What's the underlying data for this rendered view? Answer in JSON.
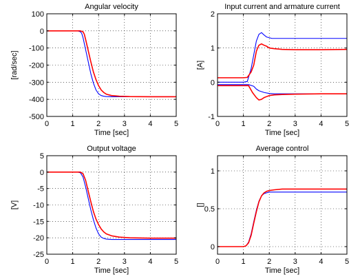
{
  "colors": {
    "background": "#ffffff",
    "axes": "#000000",
    "grid": "#000000",
    "simulation": "#0000ff",
    "experiment": "#ff0000"
  },
  "chart_data": [
    {
      "type": "line",
      "title": "Angular velocity",
      "xlabel": "Time [sec]",
      "ylabel": "[rad/sec]",
      "xlim": [
        0,
        5
      ],
      "ylim": [
        -500,
        100
      ],
      "xticks": [
        0,
        1,
        2,
        3,
        4,
        5
      ],
      "yticks": [
        100,
        0,
        -100,
        -200,
        -300,
        -400,
        -500
      ],
      "grid": true,
      "series": [
        {
          "color": "#0000ff",
          "x": [
            0,
            1.2,
            1.3,
            1.35,
            1.4,
            1.5,
            1.6,
            1.7,
            1.8,
            1.9,
            2.0,
            2.1,
            2.2,
            2.3,
            2.5,
            3.0,
            4.0,
            5.0
          ],
          "y": [
            0,
            0,
            -5,
            -15,
            -40,
            -110,
            -180,
            -250,
            -305,
            -345,
            -368,
            -378,
            -382,
            -384,
            -385,
            -385,
            -385,
            -385
          ]
        },
        {
          "color": "#ff0000",
          "x": [
            0,
            1.3,
            1.4,
            1.45,
            1.5,
            1.6,
            1.7,
            1.8,
            1.9,
            2.0,
            2.1,
            2.2,
            2.3,
            2.5,
            2.8,
            3.2,
            4.0,
            5.0
          ],
          "y": [
            0,
            0,
            -5,
            -20,
            -50,
            -115,
            -180,
            -240,
            -285,
            -320,
            -345,
            -360,
            -370,
            -378,
            -382,
            -384,
            -385,
            -385
          ]
        }
      ]
    },
    {
      "type": "line",
      "title": "Input current and armature current",
      "xlabel": "Time [sec]",
      "ylabel": "[A]",
      "xlim": [
        0,
        5
      ],
      "ylim": [
        -1,
        2
      ],
      "xticks": [
        0,
        1,
        2,
        3,
        4,
        5
      ],
      "yticks": [
        2,
        1,
        0,
        -1
      ],
      "grid": true,
      "series": [
        {
          "color": "#0000ff",
          "x": [
            0,
            1.0,
            1.15,
            1.3,
            1.5,
            1.6,
            1.7,
            1.8,
            1.9,
            2.0,
            2.1,
            2.3,
            3.0,
            5.0
          ],
          "y": [
            0,
            0,
            0.02,
            0.4,
            1.2,
            1.4,
            1.45,
            1.38,
            1.32,
            1.3,
            1.28,
            1.28,
            1.28,
            1.28
          ]
        },
        {
          "color": "#0000ff",
          "x": [
            0,
            1.0,
            1.2,
            1.4,
            1.5,
            1.6,
            1.8,
            2.0,
            2.2,
            3.0,
            5.0
          ],
          "y": [
            -0.07,
            -0.07,
            -0.07,
            -0.12,
            -0.2,
            -0.25,
            -0.3,
            -0.33,
            -0.34,
            -0.34,
            -0.34
          ]
        },
        {
          "color": "#ff0000",
          "x": [
            0,
            1.0,
            1.15,
            1.3,
            1.4,
            1.5,
            1.55,
            1.6,
            1.7,
            1.8,
            1.9,
            2.0,
            2.2,
            2.5,
            3.0,
            4.0,
            5.0
          ],
          "y": [
            0.13,
            0.13,
            0.14,
            0.3,
            0.5,
            0.9,
            1.0,
            1.08,
            1.12,
            1.08,
            1.05,
            1.0,
            0.98,
            0.96,
            0.95,
            0.95,
            0.96
          ]
        },
        {
          "color": "#ff0000",
          "x": [
            0,
            1.1,
            1.2,
            1.35,
            1.5,
            1.6,
            1.7,
            1.8,
            1.9,
            2.0,
            2.2,
            2.5,
            3.0,
            4.0,
            5.0
          ],
          "y": [
            -0.1,
            -0.1,
            -0.1,
            -0.3,
            -0.45,
            -0.52,
            -0.5,
            -0.45,
            -0.42,
            -0.39,
            -0.37,
            -0.36,
            -0.35,
            -0.34,
            -0.34
          ]
        }
      ]
    },
    {
      "type": "line",
      "title": "Output voltage",
      "xlabel": "Time [sec]",
      "ylabel": "[V]",
      "xlim": [
        0,
        5
      ],
      "ylim": [
        -25,
        5
      ],
      "xticks": [
        0,
        1,
        2,
        3,
        4,
        5
      ],
      "yticks": [
        5,
        0,
        -5,
        -10,
        -15,
        -20,
        -25
      ],
      "grid": true,
      "series": [
        {
          "color": "#0000ff",
          "x": [
            0,
            1.2,
            1.3,
            1.4,
            1.5,
            1.6,
            1.7,
            1.8,
            1.9,
            2.0,
            2.1,
            2.2,
            2.3,
            2.5,
            3.0,
            4.0,
            5.0
          ],
          "y": [
            0,
            0,
            -0.2,
            -1.5,
            -4.5,
            -8,
            -11.5,
            -14.5,
            -17,
            -18.8,
            -19.8,
            -20.2,
            -20.4,
            -20.5,
            -20.5,
            -20.5,
            -20.5
          ]
        },
        {
          "color": "#ff0000",
          "x": [
            0,
            1.3,
            1.4,
            1.5,
            1.6,
            1.7,
            1.8,
            1.9,
            2.0,
            2.1,
            2.2,
            2.3,
            2.5,
            2.8,
            3.2,
            4.0,
            5.0
          ],
          "y": [
            0,
            0,
            -0.5,
            -2.5,
            -5.8,
            -9,
            -12,
            -14.3,
            -16,
            -17.3,
            -18.2,
            -18.8,
            -19.4,
            -19.8,
            -20.0,
            -20.1,
            -20.1
          ]
        }
      ]
    },
    {
      "type": "line",
      "title": "Average control",
      "xlabel": "Time [sec]",
      "ylabel": "[]",
      "xlim": [
        0,
        5
      ],
      "ylim": [
        -0.1,
        1.2
      ],
      "xticks": [
        0,
        1,
        2,
        3,
        4,
        5
      ],
      "yticks": [
        1,
        0.5,
        0
      ],
      "grid": true,
      "series": [
        {
          "color": "#0000ff",
          "x": [
            0,
            1.0,
            1.1,
            1.2,
            1.3,
            1.4,
            1.5,
            1.6,
            1.7,
            1.8,
            1.9,
            2.0,
            2.2,
            2.5,
            3.0,
            5.0
          ],
          "y": [
            0,
            0,
            0.01,
            0.06,
            0.17,
            0.33,
            0.48,
            0.6,
            0.67,
            0.7,
            0.71,
            0.72,
            0.72,
            0.72,
            0.72,
            0.72
          ]
        },
        {
          "color": "#ff0000",
          "x": [
            0,
            1.0,
            1.1,
            1.2,
            1.3,
            1.4,
            1.5,
            1.6,
            1.7,
            1.8,
            1.9,
            2.0,
            2.2,
            2.5,
            3.0,
            5.0
          ],
          "y": [
            0,
            0,
            0.01,
            0.05,
            0.15,
            0.31,
            0.46,
            0.59,
            0.67,
            0.71,
            0.73,
            0.74,
            0.75,
            0.76,
            0.76,
            0.76
          ]
        }
      ]
    }
  ]
}
